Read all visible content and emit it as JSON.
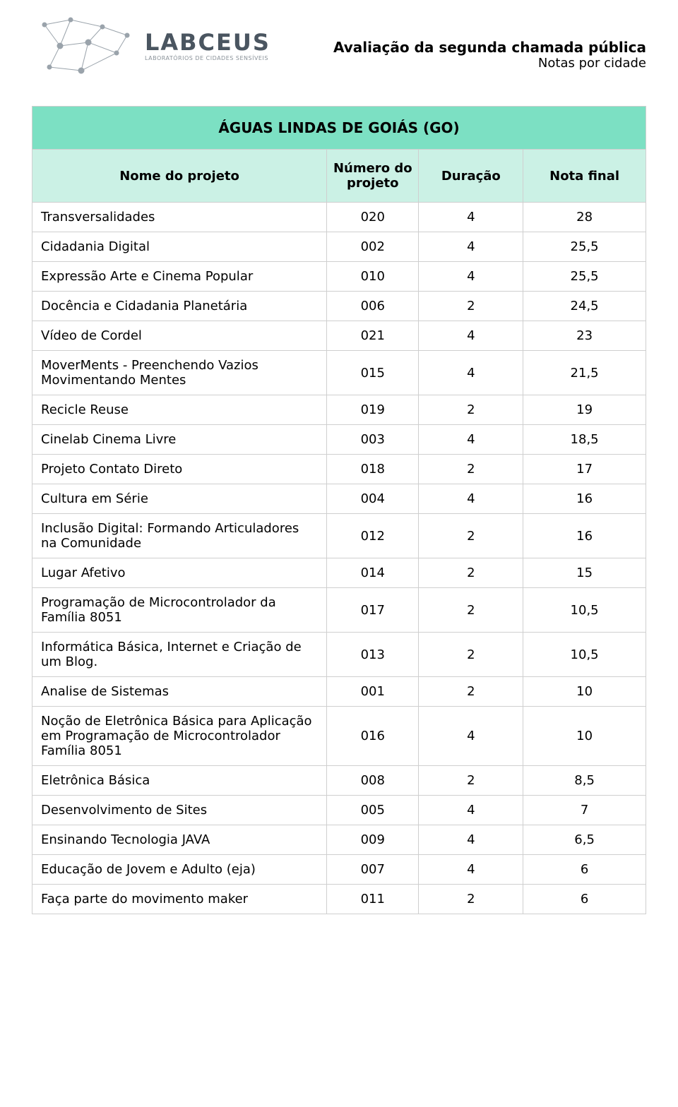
{
  "colors": {
    "header_row_bg": "#7ce0c3",
    "subheader_row_bg": "#cbf1e5",
    "border": "#cfcfcf",
    "text": "#000000",
    "logo_text": "#4a5560",
    "logo_sub": "#8a9299",
    "logo_stroke": "#9aa3ab"
  },
  "typography": {
    "body_family": "DejaVu Sans, Verdana, sans-serif",
    "table_title_fontsize": 20,
    "header_fontsize": 18,
    "cell_fontsize": 18,
    "logo_word_fontsize": 32,
    "logo_sub_fontsize": 8
  },
  "logo": {
    "word": "LABCEUS",
    "subtitle": "LABORATÓRIOS DE CIDADES SENSÍVEIS"
  },
  "header": {
    "title": "Avaliação da segunda chamada pública",
    "subtitle": "Notas por cidade"
  },
  "table": {
    "title": "ÁGUAS LINDAS DE GOIÁS (GO)",
    "columns": [
      {
        "label": "Nome do projeto",
        "align": "left"
      },
      {
        "label": "Número do projeto",
        "align": "center"
      },
      {
        "label": "Duração",
        "align": "center"
      },
      {
        "label": "Nota final",
        "align": "center"
      }
    ],
    "rows": [
      {
        "name": "Transversalidades",
        "num": "020",
        "dur": "4",
        "note": "28"
      },
      {
        "name": "Cidadania Digital",
        "num": "002",
        "dur": "4",
        "note": "25,5"
      },
      {
        "name": "Expressão Arte e Cinema Popular",
        "num": "010",
        "dur": "4",
        "note": "25,5"
      },
      {
        "name": "Docência e Cidadania Planetária",
        "num": "006",
        "dur": "2",
        "note": "24,5"
      },
      {
        "name": "Vídeo de Cordel",
        "num": "021",
        "dur": "4",
        "note": "23"
      },
      {
        "name": "MoverMents - Preenchendo Vazios Movimentando Mentes",
        "num": "015",
        "dur": "4",
        "note": "21,5"
      },
      {
        "name": "Recicle Reuse",
        "num": "019",
        "dur": "2",
        "note": "19"
      },
      {
        "name": "Cinelab Cinema Livre",
        "num": "003",
        "dur": "4",
        "note": "18,5"
      },
      {
        "name": "Projeto Contato Direto",
        "num": "018",
        "dur": "2",
        "note": "17"
      },
      {
        "name": "Cultura em Série",
        "num": "004",
        "dur": "4",
        "note": "16"
      },
      {
        "name": "Inclusão Digital: Formando Articuladores na Comunidade",
        "num": "012",
        "dur": "2",
        "note": "16"
      },
      {
        "name": "Lugar Afetivo",
        "num": "014",
        "dur": "2",
        "note": "15"
      },
      {
        "name": "Programação de Microcontrolador da Família 8051",
        "num": "017",
        "dur": "2",
        "note": "10,5"
      },
      {
        "name": "Informática Básica, Internet e Criação de um Blog.",
        "num": "013",
        "dur": "2",
        "note": "10,5"
      },
      {
        "name": "Analise de Sistemas",
        "num": "001",
        "dur": "2",
        "note": "10"
      },
      {
        "name": "Noção de Eletrônica Básica para Aplicação em Programação de Microcontrolador Família 8051",
        "num": "016",
        "dur": "4",
        "note": "10"
      },
      {
        "name": "Eletrônica Básica",
        "num": "008",
        "dur": "2",
        "note": "8,5"
      },
      {
        "name": "Desenvolvimento de Sites",
        "num": "005",
        "dur": "4",
        "note": "7"
      },
      {
        "name": "Ensinando Tecnologia JAVA",
        "num": "009",
        "dur": "4",
        "note": "6,5"
      },
      {
        "name": "Educação de Jovem e Adulto (eja)",
        "num": "007",
        "dur": "4",
        "note": "6"
      },
      {
        "name": "Faça parte do movimento maker",
        "num": "011",
        "dur": "2",
        "note": "6"
      }
    ]
  }
}
